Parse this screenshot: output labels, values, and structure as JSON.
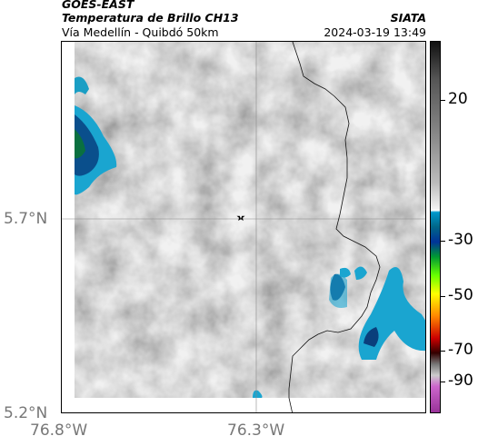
{
  "header": {
    "satellite": "GOES-EAST",
    "product": "Temperatura de Brillo CH13",
    "route": "Vía Medellín - Quibdó 50km",
    "agency": "SIATA",
    "timestamp": "2024-03-19 13:49"
  },
  "axes": {
    "lat_labels": [
      "5.7°N",
      "5.2°N"
    ],
    "lon_labels": [
      "76.8°W",
      "76.3°W"
    ]
  },
  "colorbar": {
    "labels": [
      "20",
      "-30",
      "-50",
      "-70",
      "-90"
    ],
    "stops": [
      "#111111",
      "#555555",
      "#888888",
      "#bbbbbb",
      "#f2f2f2",
      "#ffffff",
      "#0099cc",
      "#006688",
      "#003399",
      "#009933",
      "#66ff00",
      "#ffff00",
      "#ff8800",
      "#cc0000",
      "#330000",
      "#777777",
      "#cccccc",
      "#cc66cc",
      "#993399"
    ]
  },
  "map": {
    "marker": "star",
    "marker_icon": "star-icon"
  }
}
